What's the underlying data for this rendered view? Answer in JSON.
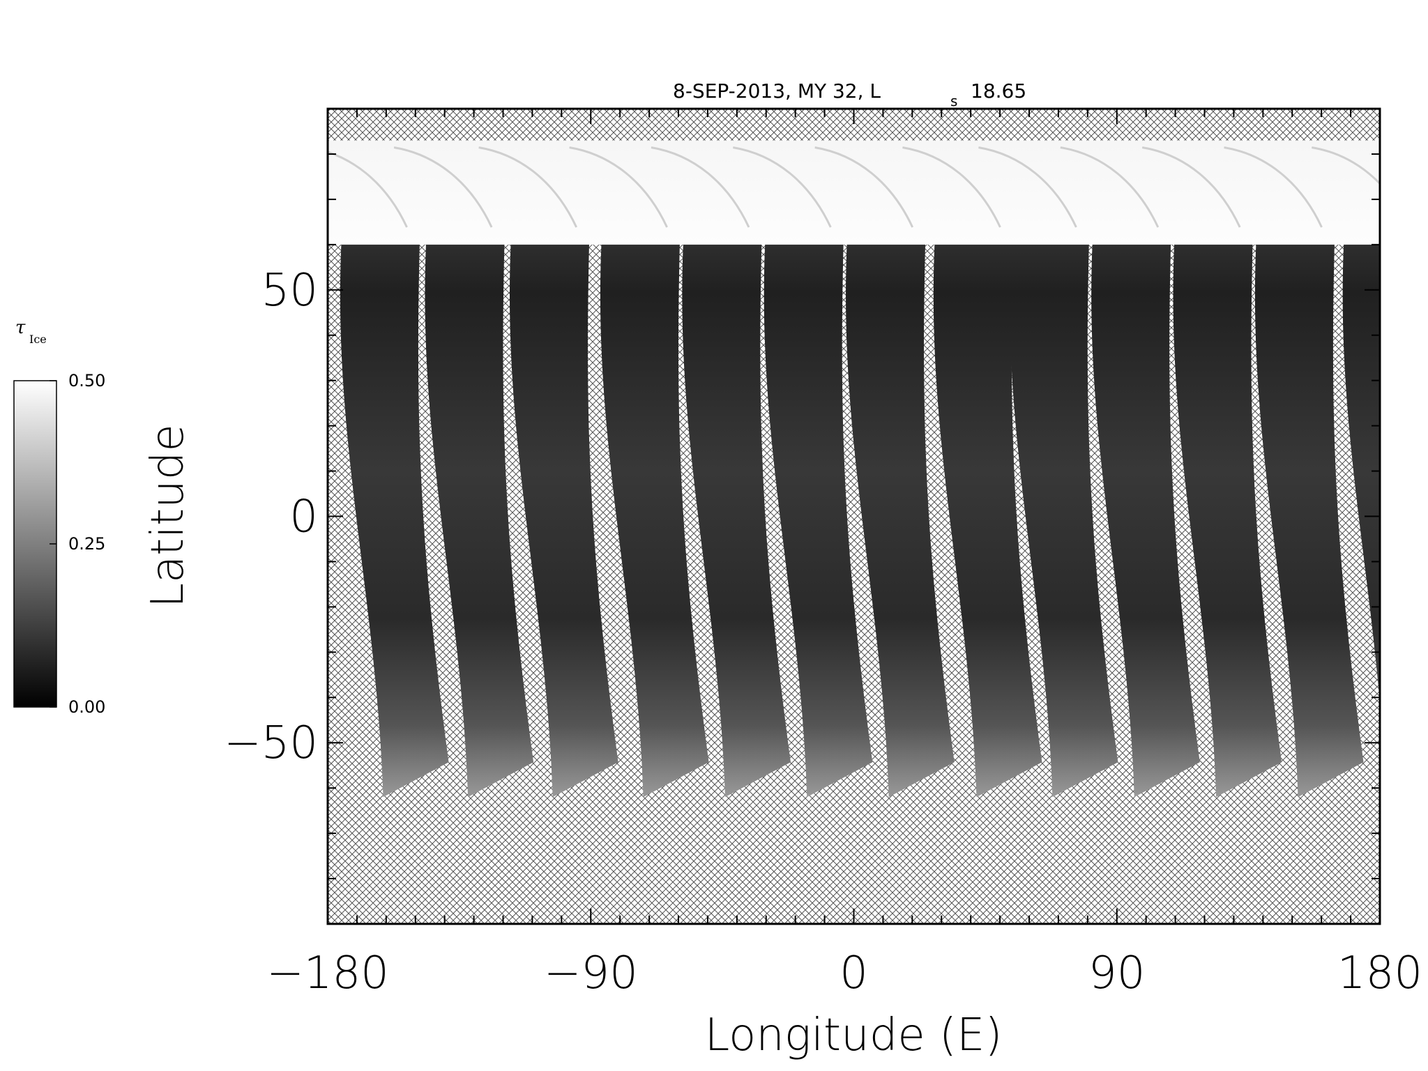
{
  "chart_data": {
    "type": "heatmap",
    "title": "8-SEP-2013, MY 32,  L",
    "title_sub": "s",
    "title_value": "18.65",
    "xlabel": "Longitude (E)",
    "ylabel": "Latitude",
    "xlim": [
      -180,
      180
    ],
    "ylim": [
      -90,
      90
    ],
    "xticks": [
      -180,
      -90,
      0,
      90,
      180
    ],
    "xtick_labels": [
      "−180",
      "−90",
      "0",
      "90",
      "180"
    ],
    "yticks": [
      -50,
      0,
      50
    ],
    "ytick_labels": [
      "−50",
      "0",
      "50"
    ],
    "x_minor_step": 10,
    "y_minor_step": 10,
    "no_data_pattern": "crosshatch",
    "polar_cap_lat_min": 60,
    "data_top_lat": 83,
    "swath_count": 13,
    "swath_top_lon": [
      -172,
      -143,
      -114,
      -83,
      -55,
      -27,
      1,
      31,
      57,
      85,
      113,
      141,
      171
    ],
    "swath_south_lat": -62,
    "colorbar": {
      "title": "τ",
      "title_sub": "Ice",
      "min": 0.0,
      "max": 0.5,
      "ticks": [
        0.0,
        0.25,
        0.5
      ],
      "tick_labels": [
        "0.00",
        "0.25",
        "0.50"
      ],
      "colormap": "grayscale",
      "low_color": "#000000",
      "high_color": "#ffffff"
    }
  }
}
